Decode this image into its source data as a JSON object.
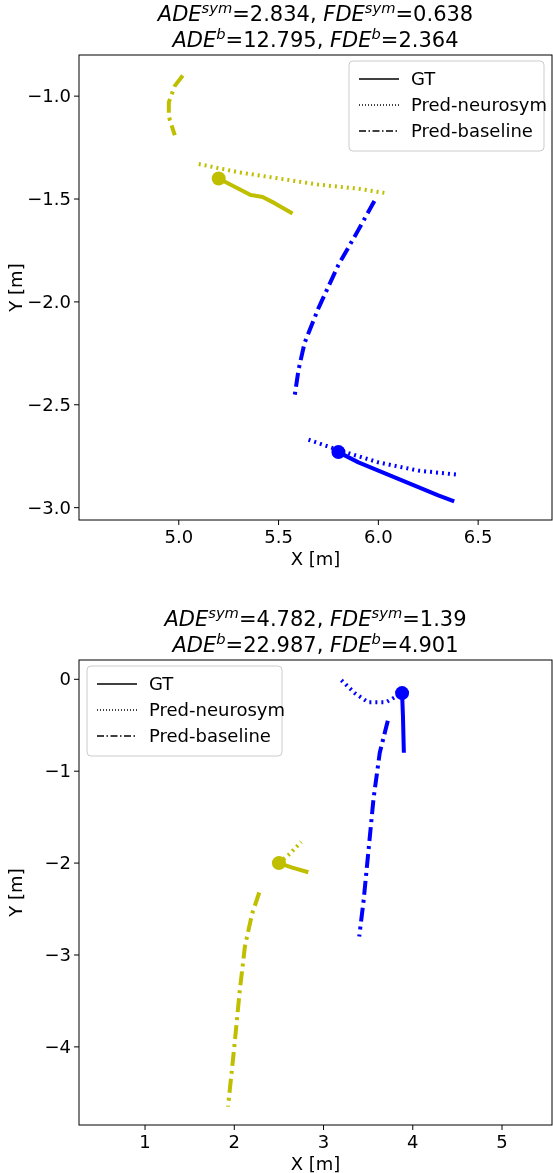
{
  "chart_data": [
    {
      "type": "line",
      "title": "ADE$^{sym}$=2.834, FDE$^{sym}$=0.638",
      "subtitle": "ADE$^{b}$=12.795, FDE$^{b}$=2.364",
      "xlabel": "X [m]",
      "ylabel": "Y [m]",
      "xlim": [
        4.5,
        6.87
      ],
      "ylim": [
        -3.06,
        -0.8
      ],
      "xticks": [
        {
          "value": 5,
          "label": "5.0"
        },
        5.5,
        {
          "value": 6,
          "label": "6.0"
        },
        6.5
      ],
      "yticks": [
        {
          "value": -1,
          "label": "−1.0"
        },
        -1.5,
        {
          "value": -2,
          "label": "−2.0"
        },
        -2.5,
        {
          "value": -3,
          "label": "−3.0"
        }
      ],
      "legend": "top right",
      "grid": false,
      "series": [
        {
          "name": "GT",
          "color": "#000000",
          "line_style": "solid"
        },
        {
          "name": "Pred-neurosym",
          "color": "#000000",
          "line_style": "dotted"
        },
        {
          "name": "Pred-baseline",
          "color": "#000000",
          "line_style": "dashdot"
        },
        {
          "color": "#bfbf00",
          "line_style": "solid",
          "x": [
            5.2,
            5.28,
            5.36,
            5.42,
            5.48,
            5.57
          ],
          "values": [
            -1.4,
            -1.44,
            -1.48,
            -1.49,
            -1.52,
            -1.57
          ]
        },
        {
          "color": "#bfbf00",
          "line_style": "dotted",
          "x": [
            5.1,
            5.3,
            5.5,
            5.7,
            5.9,
            6.03
          ],
          "values": [
            -1.33,
            -1.37,
            -1.4,
            -1.43,
            -1.45,
            -1.47
          ]
        },
        {
          "color": "#bfbf00",
          "line_style": "dashdot",
          "x": [
            5.02,
            4.98,
            4.95,
            4.95,
            4.98
          ],
          "values": [
            -0.9,
            -0.95,
            -1.03,
            -1.1,
            -1.19
          ]
        },
        {
          "color": "#bfbf00",
          "type": "scatter",
          "marker": "circle",
          "x": [
            5.2
          ],
          "values": [
            -1.4
          ]
        },
        {
          "color": "#0000ff",
          "line_style": "solid",
          "x": [
            5.8,
            5.9,
            6.0,
            6.1,
            6.2,
            6.3,
            6.38
          ],
          "values": [
            -2.73,
            -2.78,
            -2.82,
            -2.86,
            -2.9,
            -2.94,
            -2.97
          ]
        },
        {
          "color": "#0000ff",
          "line_style": "dotted",
          "x": [
            5.65,
            5.8,
            6.0,
            6.2,
            6.4
          ],
          "values": [
            -2.67,
            -2.72,
            -2.78,
            -2.82,
            -2.84
          ]
        },
        {
          "color": "#0000ff",
          "line_style": "dashdot",
          "x": [
            5.98,
            5.9,
            5.8,
            5.7,
            5.63,
            5.6,
            5.58
          ],
          "values": [
            -1.51,
            -1.65,
            -1.82,
            -2.03,
            -2.2,
            -2.33,
            -2.46
          ]
        },
        {
          "color": "#0000ff",
          "type": "scatter",
          "marker": "circle",
          "x": [
            5.8
          ],
          "values": [
            -2.73
          ]
        }
      ]
    },
    {
      "type": "line",
      "title": "ADE$^{sym}$=4.782, FDE$^{sym}$=1.39",
      "subtitle": "ADE$^{b}$=22.987, FDE$^{b}$=4.901",
      "xlabel": "X [m]",
      "ylabel": "Y [m]",
      "xlim": [
        0.26,
        5.56
      ],
      "ylim": [
        -4.85,
        0.21
      ],
      "xticks": [
        1,
        2,
        3,
        4,
        5
      ],
      "yticks": [
        0,
        -1,
        -2,
        -3,
        -4
      ],
      "legend": "top left",
      "grid": false,
      "series": [
        {
          "name": "GT",
          "color": "#000000",
          "line_style": "solid"
        },
        {
          "name": "Pred-neurosym",
          "color": "#000000",
          "line_style": "dotted"
        },
        {
          "name": "Pred-baseline",
          "color": "#000000",
          "line_style": "dashdot"
        },
        {
          "color": "#bfbf00",
          "line_style": "solid",
          "x": [
            2.5,
            2.65,
            2.83
          ],
          "values": [
            -2.0,
            -2.05,
            -2.1
          ]
        },
        {
          "color": "#bfbf00",
          "line_style": "dotted",
          "x": [
            2.5,
            2.62,
            2.75
          ],
          "values": [
            -2.0,
            -1.9,
            -1.77
          ]
        },
        {
          "color": "#bfbf00",
          "line_style": "dashdot",
          "x": [
            2.28,
            2.2,
            2.12,
            2.06,
            2.0,
            1.93
          ],
          "values": [
            -2.32,
            -2.55,
            -2.9,
            -3.4,
            -4.0,
            -4.65
          ]
        },
        {
          "color": "#bfbf00",
          "type": "scatter",
          "marker": "circle",
          "x": [
            2.5
          ],
          "values": [
            -2.0
          ]
        },
        {
          "color": "#0000ff",
          "line_style": "solid",
          "x": [
            3.88,
            3.89,
            3.9
          ],
          "values": [
            -0.15,
            -0.4,
            -0.8
          ]
        },
        {
          "color": "#0000ff",
          "line_style": "dotted",
          "x": [
            3.2,
            3.35,
            3.5,
            3.7,
            3.88
          ],
          "values": [
            -0.01,
            -0.15,
            -0.25,
            -0.25,
            -0.15
          ]
        },
        {
          "color": "#0000ff",
          "line_style": "dashdot",
          "x": [
            3.72,
            3.63,
            3.56,
            3.5,
            3.45,
            3.4
          ],
          "values": [
            -0.45,
            -0.8,
            -1.3,
            -1.9,
            -2.4,
            -2.8
          ]
        },
        {
          "color": "#0000ff",
          "type": "scatter",
          "marker": "circle",
          "x": [
            3.88
          ],
          "values": [
            -0.15
          ]
        }
      ]
    }
  ]
}
